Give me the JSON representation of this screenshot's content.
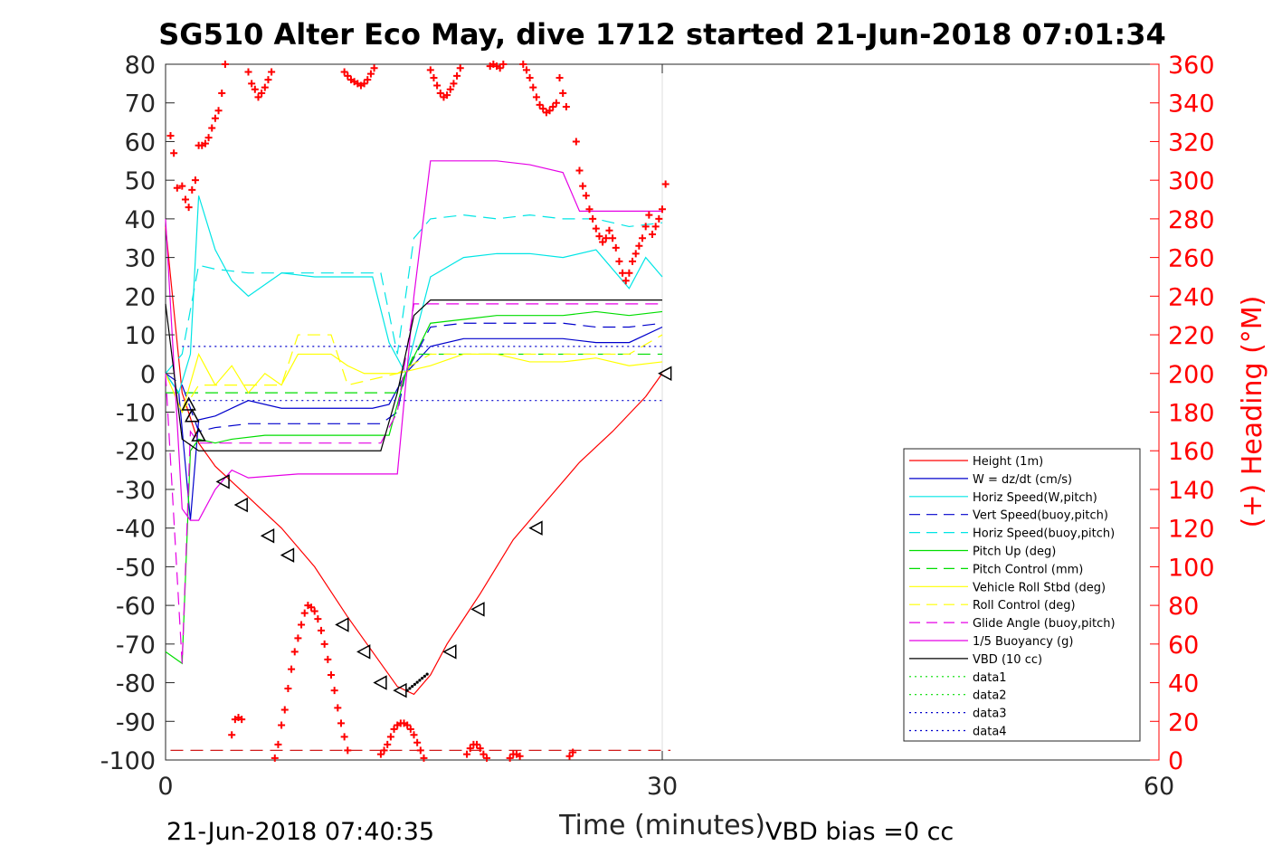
{
  "chart_data": {
    "type": "line",
    "title": "SG510 Alter Eco May, dive 1712 started 21-Jun-2018 07:01:34",
    "xlabel": "Time (minutes)",
    "ylabel": "",
    "ylabel_right": "(+) Heading (°M)",
    "xlim": [
      0,
      60
    ],
    "ylim": [
      -100,
      80
    ],
    "ylim_right": [
      0,
      360
    ],
    "xticks": [
      "0",
      "30",
      "60"
    ],
    "yticks": [
      "80",
      "70",
      "60",
      "50",
      "40",
      "30",
      "20",
      "10",
      "0",
      "-10",
      "-20",
      "-30",
      "-40",
      "-50",
      "-60",
      "-70",
      "-80",
      "-90",
      "-100"
    ],
    "yticks_right": [
      "360",
      "340",
      "320",
      "300",
      "280",
      "260",
      "240",
      "220",
      "200",
      "180",
      "160",
      "140",
      "120",
      "100",
      "80",
      "60",
      "40",
      "20",
      "0"
    ],
    "grid": "vertical line at x=30",
    "legend_position": "lower-right",
    "footer_left": "21-Jun-2018 07:40:35",
    "footer_right": "VBD bias =0 cc",
    "colors": {
      "red": "#ff0000",
      "blue": "#0000cc",
      "cyan": "#00e5e5",
      "green": "#00dd00",
      "yellow": "#ffff00",
      "magenta": "#e500e5",
      "black": "#000000"
    },
    "series": [
      {
        "name": "Height (1m)",
        "color": "#ff0000",
        "style": "solid",
        "x": [
          0,
          1,
          2,
          3,
          5,
          7,
          9,
          11,
          13,
          14,
          15,
          16,
          17,
          19,
          21,
          23,
          25,
          27,
          29,
          30
        ],
        "y": [
          38,
          -5,
          -18,
          -24,
          -32,
          -40,
          -50,
          -63,
          -75,
          -81,
          -83,
          -78,
          -70,
          -57,
          -43,
          -33,
          -23,
          -15,
          -6,
          0
        ]
      },
      {
        "name": "W = dz/dt (cm/s)",
        "color": "#0000cc",
        "style": "solid",
        "x": [
          0,
          0.8,
          1.5,
          2,
          3,
          4,
          5,
          7,
          9,
          11,
          12.5,
          13.5,
          14.5,
          16,
          18,
          20,
          22,
          24,
          26,
          28,
          29,
          30
        ],
        "y": [
          0,
          -5,
          -38,
          -12,
          -11,
          -9,
          -7,
          -9,
          -9,
          -9,
          -9,
          -8,
          0,
          7,
          9,
          9,
          9,
          9,
          8,
          8,
          10,
          12
        ]
      },
      {
        "name": "Horiz Speed(W,pitch)",
        "color": "#00e5e5",
        "style": "solid",
        "x": [
          0,
          0.8,
          1.5,
          2,
          3,
          4,
          5,
          7,
          9,
          11,
          12.5,
          13.5,
          14.5,
          16,
          18,
          20,
          22,
          24,
          26,
          28,
          29,
          30
        ],
        "y": [
          0,
          -5,
          5,
          46,
          32,
          24,
          20,
          26,
          25,
          25,
          25,
          8,
          0,
          25,
          30,
          31,
          31,
          30,
          32,
          22,
          30,
          25
        ]
      },
      {
        "name": "Vert Speed(buoy,pitch)",
        "color": "#0000cc",
        "style": "dashed",
        "x": [
          0,
          1,
          2,
          3,
          5,
          8,
          11,
          13,
          14,
          14.5,
          16,
          18,
          20,
          22,
          24,
          26,
          28,
          30
        ],
        "y": [
          0,
          -3,
          -15,
          -14,
          -13,
          -13,
          -13,
          -13,
          -10,
          0,
          12,
          13,
          13,
          13,
          13,
          12,
          12,
          13
        ]
      },
      {
        "name": "Horiz Speed(buoy,pitch)",
        "color": "#00e5e5",
        "style": "dashed",
        "x": [
          0,
          1,
          2,
          3,
          5,
          8,
          11,
          13,
          14,
          15,
          16,
          18,
          20,
          22,
          24,
          26,
          28,
          30
        ],
        "y": [
          0,
          5,
          28,
          27,
          26,
          26,
          26,
          26,
          5,
          35,
          40,
          41,
          40,
          41,
          40,
          40,
          38,
          39
        ]
      },
      {
        "name": "Pitch Up (deg)",
        "color": "#00dd00",
        "style": "solid",
        "x": [
          0,
          1,
          1.5,
          2,
          3,
          4,
          6,
          9,
          11,
          13,
          13.5,
          14.5,
          16,
          18,
          20,
          22,
          24,
          26,
          28,
          30
        ],
        "y": [
          -72,
          -75,
          -20,
          -17,
          -18,
          -17,
          -16,
          -16,
          -16,
          -16,
          -16,
          0,
          13,
          14,
          15,
          15,
          15,
          16,
          15,
          16
        ]
      },
      {
        "name": "Pitch Control (mm)",
        "color": "#00dd00",
        "style": "dashed",
        "x": [
          0,
          1,
          2,
          14,
          15,
          30
        ],
        "y": [
          -5,
          -5,
          -5,
          -5,
          5,
          5
        ]
      },
      {
        "name": "Vehicle Roll Stbd (deg)",
        "color": "#ffff00",
        "style": "solid",
        "x": [
          0,
          1,
          2,
          3,
          4,
          5,
          6,
          7,
          8,
          9,
          10,
          11,
          12,
          13,
          14,
          16,
          18,
          20,
          22,
          24,
          26,
          28,
          30
        ],
        "y": [
          0,
          -10,
          5,
          -3,
          2,
          -5,
          0,
          -3,
          5,
          5,
          5,
          2,
          0,
          0,
          0,
          2,
          5,
          5,
          3,
          3,
          4,
          2,
          3
        ]
      },
      {
        "name": "Roll Control (deg)",
        "color": "#ffff00",
        "style": "dashed",
        "x": [
          0,
          1,
          2,
          7,
          8,
          10,
          11,
          14,
          16,
          18,
          20,
          22,
          24,
          26,
          28,
          30
        ],
        "y": [
          0,
          -10,
          -3,
          -3,
          10,
          10,
          -3,
          0,
          5,
          5,
          5,
          5,
          5,
          5,
          5,
          10
        ]
      },
      {
        "name": "Glide Angle (buoy,pitch)",
        "color": "#e500e5",
        "style": "dashed",
        "x": [
          0,
          1,
          1.5,
          2,
          5,
          10,
          13,
          14,
          15,
          16,
          18,
          20,
          22,
          24,
          26,
          28,
          30
        ],
        "y": [
          0,
          -75,
          -15,
          -18,
          -18,
          -18,
          -18,
          -10,
          18,
          18,
          18,
          18,
          18,
          18,
          18,
          18,
          18
        ]
      },
      {
        "name": "1/5 Buoyancy (g)",
        "color": "#e500e5",
        "style": "solid",
        "x": [
          0,
          1,
          1.5,
          2,
          3,
          4,
          5,
          8,
          11,
          13,
          14,
          15,
          16,
          18,
          20,
          22,
          24,
          25,
          27,
          30
        ],
        "y": [
          40,
          -35,
          -38,
          -38,
          -30,
          -25,
          -27,
          -26,
          -26,
          -26,
          -26,
          20,
          55,
          55,
          55,
          54,
          52,
          42,
          42,
          42
        ]
      },
      {
        "name": "VBD (10 cc)",
        "color": "#000000",
        "style": "solid",
        "x": [
          0,
          1,
          2,
          5,
          10,
          13,
          14,
          15,
          16,
          20,
          25,
          30
        ],
        "y": [
          18,
          -17,
          -20,
          -20,
          -20,
          -20,
          -5,
          15,
          19,
          19,
          19,
          19
        ]
      },
      {
        "name": "data1",
        "color": "#00dd00",
        "style": "dotted",
        "x": [],
        "y": []
      },
      {
        "name": "data2",
        "color": "#00dd00",
        "style": "dotted",
        "x": [],
        "y": []
      },
      {
        "name": "data3",
        "color": "#0000cc",
        "style": "dotted",
        "x": [
          1,
          30
        ],
        "y": [
          7,
          7
        ]
      },
      {
        "name": "data4",
        "color": "#0000cc",
        "style": "dotted",
        "x": [
          1,
          30
        ],
        "y": [
          -7,
          -7
        ]
      }
    ],
    "heading_series": {
      "axis": "right",
      "color": "#ff0000",
      "marker": "+",
      "points": [
        [
          0.3,
          323
        ],
        [
          0.5,
          314
        ],
        [
          0.7,
          296
        ],
        [
          1.0,
          297
        ],
        [
          1.2,
          290
        ],
        [
          1.4,
          286
        ],
        [
          1.6,
          295
        ],
        [
          1.8,
          300
        ],
        [
          2.0,
          318
        ],
        [
          2.2,
          318
        ],
        [
          2.4,
          319
        ],
        [
          2.6,
          322
        ],
        [
          2.8,
          327
        ],
        [
          3.0,
          332
        ],
        [
          3.2,
          336
        ],
        [
          3.4,
          345
        ],
        [
          3.6,
          360
        ],
        [
          4.0,
          13
        ],
        [
          4.2,
          21
        ],
        [
          4.4,
          22
        ],
        [
          4.6,
          21
        ],
        [
          5.0,
          356
        ],
        [
          5.2,
          350
        ],
        [
          5.4,
          347
        ],
        [
          5.6,
          343
        ],
        [
          5.8,
          345
        ],
        [
          6.0,
          348
        ],
        [
          6.2,
          352
        ],
        [
          6.4,
          356
        ],
        [
          6.6,
          1
        ],
        [
          6.8,
          8
        ],
        [
          7.0,
          18
        ],
        [
          7.2,
          26
        ],
        [
          7.4,
          37
        ],
        [
          7.6,
          47
        ],
        [
          7.8,
          56
        ],
        [
          8.0,
          63
        ],
        [
          8.2,
          70
        ],
        [
          8.4,
          76
        ],
        [
          8.6,
          80
        ],
        [
          8.8,
          79
        ],
        [
          9.0,
          77
        ],
        [
          9.2,
          73
        ],
        [
          9.4,
          67
        ],
        [
          9.6,
          60
        ],
        [
          9.8,
          52
        ],
        [
          10.0,
          44
        ],
        [
          10.2,
          36
        ],
        [
          10.4,
          27
        ],
        [
          10.6,
          19
        ],
        [
          10.8,
          12
        ],
        [
          11.0,
          5
        ],
        [
          10.8,
          356
        ],
        [
          11.0,
          354
        ],
        [
          11.2,
          352
        ],
        [
          11.4,
          351
        ],
        [
          11.6,
          350
        ],
        [
          11.8,
          349
        ],
        [
          12.0,
          350
        ],
        [
          12.2,
          352
        ],
        [
          12.4,
          355
        ],
        [
          12.6,
          358
        ],
        [
          13.0,
          3
        ],
        [
          13.2,
          5
        ],
        [
          13.4,
          8
        ],
        [
          13.6,
          12
        ],
        [
          13.8,
          16
        ],
        [
          14.0,
          18
        ],
        [
          14.2,
          19
        ],
        [
          14.4,
          19
        ],
        [
          14.6,
          18
        ],
        [
          14.8,
          16
        ],
        [
          15.0,
          13
        ],
        [
          15.2,
          9
        ],
        [
          15.4,
          5
        ],
        [
          15.6,
          1
        ],
        [
          16.0,
          357
        ],
        [
          16.2,
          353
        ],
        [
          16.4,
          349
        ],
        [
          16.6,
          345
        ],
        [
          16.8,
          343
        ],
        [
          17.0,
          344
        ],
        [
          17.2,
          347
        ],
        [
          17.4,
          350
        ],
        [
          17.6,
          354
        ],
        [
          17.8,
          358
        ],
        [
          18.2,
          3
        ],
        [
          18.4,
          6
        ],
        [
          18.6,
          8
        ],
        [
          18.8,
          8
        ],
        [
          19.0,
          6
        ],
        [
          19.2,
          3
        ],
        [
          19.4,
          1
        ],
        [
          19.6,
          359
        ],
        [
          19.8,
          360
        ],
        [
          20.0,
          359
        ],
        [
          20.2,
          358
        ],
        [
          20.4,
          360
        ],
        [
          20.8,
          1
        ],
        [
          21.0,
          3
        ],
        [
          21.2,
          3
        ],
        [
          21.4,
          2
        ],
        [
          21.6,
          360
        ],
        [
          21.8,
          357
        ],
        [
          22.0,
          353
        ],
        [
          22.2,
          348
        ],
        [
          22.4,
          343
        ],
        [
          22.6,
          339
        ],
        [
          22.8,
          337
        ],
        [
          23.0,
          335
        ],
        [
          23.2,
          336
        ],
        [
          23.4,
          338
        ],
        [
          23.6,
          340
        ],
        [
          23.8,
          353
        ],
        [
          24.0,
          345
        ],
        [
          24.2,
          338
        ],
        [
          24.4,
          2
        ],
        [
          24.6,
          4
        ],
        [
          24.8,
          320
        ],
        [
          25.0,
          305
        ],
        [
          25.2,
          297
        ],
        [
          25.4,
          292
        ],
        [
          25.6,
          285
        ],
        [
          25.8,
          280
        ],
        [
          26.0,
          275
        ],
        [
          26.2,
          271
        ],
        [
          26.4,
          268
        ],
        [
          26.6,
          270
        ],
        [
          26.8,
          274
        ],
        [
          27.0,
          270
        ],
        [
          27.2,
          265
        ],
        [
          27.4,
          258
        ],
        [
          27.6,
          252
        ],
        [
          27.8,
          248
        ],
        [
          28.0,
          252
        ],
        [
          28.2,
          258
        ],
        [
          28.4,
          262
        ],
        [
          28.6,
          266
        ],
        [
          28.8,
          270
        ],
        [
          29.0,
          276
        ],
        [
          29.2,
          282
        ],
        [
          29.4,
          272
        ],
        [
          29.6,
          276
        ],
        [
          29.8,
          280
        ],
        [
          30.0,
          285
        ],
        [
          30.2,
          298
        ]
      ]
    },
    "triangle_markers": {
      "color": "#000000",
      "down": [
        [
          1.4,
          -8
        ],
        [
          1.6,
          -11
        ],
        [
          2.0,
          -16
        ]
      ],
      "left": [
        [
          3.5,
          -28
        ],
        [
          4.6,
          -34
        ],
        [
          6.2,
          -42
        ],
        [
          7.4,
          -47
        ],
        [
          10.7,
          -65
        ],
        [
          12.0,
          -72
        ],
        [
          13.0,
          -80
        ],
        [
          14.2,
          -82
        ],
        [
          17.2,
          -72
        ],
        [
          18.9,
          -61
        ],
        [
          22.4,
          -40
        ],
        [
          30.2,
          0
        ]
      ]
    }
  }
}
